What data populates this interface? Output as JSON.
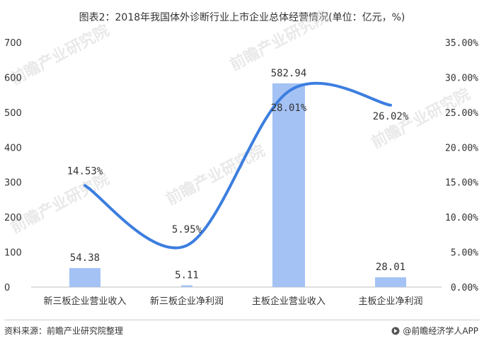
{
  "title": "图表2：2018年我国体外诊断行业上市企业总体经营情况(单位：亿元，%)",
  "source": "资料来源：前瞻产业研究院整理",
  "brand": "@前瞻经济学人APP",
  "watermark": "前瞻产业研究院",
  "colors": {
    "bar": "#a4c2f4",
    "line": "#3c7ee0",
    "axis": "#bfbfbf",
    "text": "#333333"
  },
  "chart_data": {
    "type": "bar",
    "categories": [
      "新三板企业营业收入",
      "新三板企业净利润",
      "主板企业营业收入",
      "主板企业净利润"
    ],
    "series": [
      {
        "type": "bar",
        "axis": "left",
        "values": [
          54.38,
          5.11,
          582.94,
          28.01
        ],
        "labels": [
          "54.38",
          "5.11",
          "582.94",
          "28.01"
        ]
      },
      {
        "type": "line",
        "axis": "right",
        "values": [
          14.53,
          5.95,
          28.01,
          26.02
        ],
        "labels": [
          "14.53%",
          "5.95%",
          "28.01%",
          "26.02%"
        ]
      }
    ],
    "y_left": {
      "lim": [
        0,
        700
      ],
      "ticks": [
        "0",
        "100",
        "200",
        "300",
        "400",
        "500",
        "600",
        "700"
      ]
    },
    "y_right": {
      "lim": [
        0,
        35
      ],
      "ticks": [
        "0.00%",
        "5.00%",
        "10.00%",
        "15.00%",
        "20.00%",
        "25.00%",
        "30.00%",
        "35.00%"
      ]
    },
    "grid": false,
    "legend": "none"
  }
}
